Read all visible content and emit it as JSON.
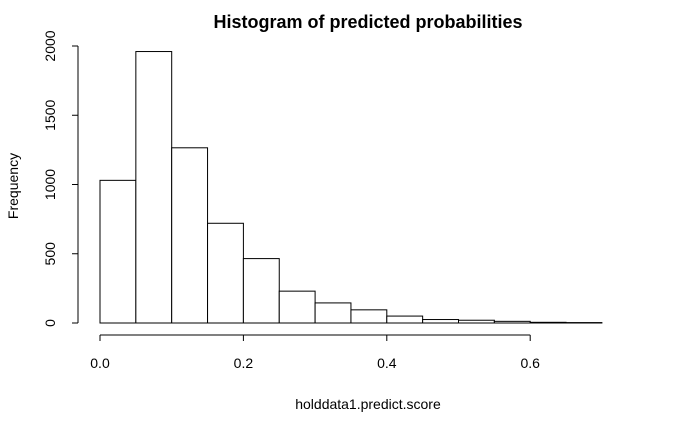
{
  "chart_data": {
    "type": "bar",
    "title": "Histogram of predicted probabilities",
    "xlabel": "holddata1.predict.score",
    "ylabel": "Frequency",
    "bins": [
      {
        "x0": 0.0,
        "x1": 0.05,
        "count": 1030
      },
      {
        "x0": 0.05,
        "x1": 0.1,
        "count": 1960
      },
      {
        "x0": 0.1,
        "x1": 0.15,
        "count": 1265
      },
      {
        "x0": 0.15,
        "x1": 0.2,
        "count": 720
      },
      {
        "x0": 0.2,
        "x1": 0.25,
        "count": 465
      },
      {
        "x0": 0.25,
        "x1": 0.3,
        "count": 230
      },
      {
        "x0": 0.3,
        "x1": 0.35,
        "count": 145
      },
      {
        "x0": 0.35,
        "x1": 0.4,
        "count": 95
      },
      {
        "x0": 0.4,
        "x1": 0.45,
        "count": 50
      },
      {
        "x0": 0.45,
        "x1": 0.5,
        "count": 25
      },
      {
        "x0": 0.5,
        "x1": 0.55,
        "count": 20
      },
      {
        "x0": 0.55,
        "x1": 0.6,
        "count": 12
      },
      {
        "x0": 0.6,
        "x1": 0.65,
        "count": 5
      },
      {
        "x0": 0.65,
        "x1": 0.7,
        "count": 3
      }
    ],
    "xlim": [
      0.0,
      0.7
    ],
    "ylim": [
      0,
      2000
    ],
    "x_ticks": [
      "0.0",
      "0.2",
      "0.4",
      "0.6"
    ],
    "y_ticks": [
      "0",
      "500",
      "1000",
      "1500",
      "2000"
    ],
    "grid": false,
    "bar_fill": "#ffffff",
    "bar_stroke": "#000000"
  }
}
